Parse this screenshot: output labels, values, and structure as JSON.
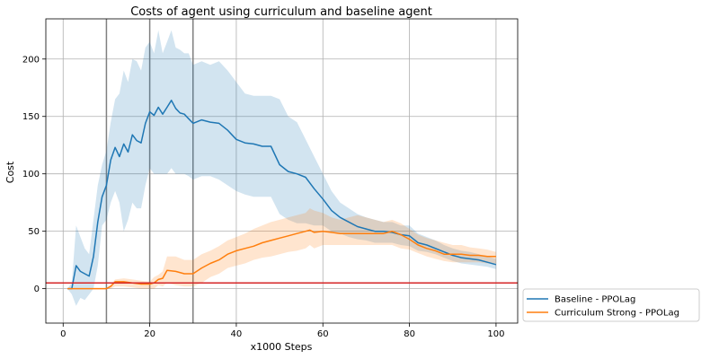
{
  "chart_data": {
    "type": "line",
    "title": "Costs of agent using curriculum and baseline agent",
    "xlabel": "x1000 Steps",
    "ylabel": "Cost",
    "xlim": [
      -4,
      105
    ],
    "ylim": [
      -30,
      235
    ],
    "xticks": [
      0,
      20,
      40,
      60,
      80,
      100
    ],
    "yticks": [
      0,
      50,
      100,
      150,
      200
    ],
    "grid": true,
    "legend_position": "outside-bottom-right",
    "threshold": {
      "y": 5,
      "color": "#d62728"
    },
    "vertical_markers": [
      10,
      20,
      30
    ],
    "series": [
      {
        "name": "Baseline - PPOLag",
        "color": "#1f77b4",
        "band_color": "#1f77b4",
        "x": [
          1,
          2,
          3,
          4,
          5,
          6,
          7,
          8,
          9,
          10,
          11,
          12,
          13,
          14,
          15,
          16,
          17,
          18,
          19,
          20,
          21,
          22,
          23,
          24,
          25,
          26,
          27,
          28,
          29,
          30,
          32,
          34,
          36,
          38,
          40,
          42,
          44,
          46,
          48,
          50,
          52,
          54,
          56,
          58,
          60,
          62,
          64,
          66,
          68,
          70,
          72,
          74,
          76,
          78,
          80,
          82,
          84,
          86,
          88,
          90,
          92,
          94,
          96,
          98,
          100
        ],
        "y": [
          0,
          0,
          20,
          15,
          13,
          11,
          28,
          58,
          80,
          90,
          112,
          123,
          115,
          126,
          119,
          134,
          129,
          127,
          144,
          154,
          151,
          158,
          152,
          158,
          164,
          157,
          153,
          152,
          148,
          144,
          147,
          145,
          144,
          138,
          130,
          127,
          126,
          124,
          124,
          108,
          102,
          100,
          97,
          87,
          78,
          68,
          62,
          58,
          54,
          52,
          50,
          50,
          49,
          47,
          46,
          40,
          38,
          35,
          32,
          29,
          27,
          26,
          25,
          23,
          21
        ],
        "upper": [
          0,
          5,
          55,
          45,
          35,
          30,
          60,
          90,
          108,
          120,
          145,
          165,
          170,
          190,
          180,
          200,
          198,
          190,
          210,
          215,
          205,
          225,
          205,
          215,
          225,
          210,
          208,
          205,
          205,
          195,
          198,
          195,
          198,
          190,
          180,
          170,
          168,
          168,
          168,
          165,
          150,
          145,
          130,
          115,
          100,
          85,
          75,
          70,
          65,
          62,
          60,
          58,
          58,
          55,
          55,
          48,
          45,
          42,
          38,
          35,
          33,
          32,
          30,
          28,
          26
        ],
        "lower": [
          0,
          -5,
          -15,
          -8,
          -10,
          -5,
          0,
          20,
          55,
          60,
          75,
          85,
          75,
          50,
          60,
          75,
          70,
          70,
          90,
          105,
          100,
          100,
          100,
          100,
          105,
          100,
          100,
          100,
          98,
          95,
          98,
          98,
          95,
          90,
          85,
          82,
          80,
          80,
          80,
          65,
          60,
          57,
          57,
          55,
          55,
          50,
          48,
          45,
          43,
          42,
          40,
          40,
          40,
          38,
          37,
          33,
          32,
          30,
          27,
          24,
          22,
          21,
          20,
          19,
          17
        ]
      },
      {
        "name": "Curriculum Strong - PPOLag",
        "color": "#ff7f0e",
        "band_color": "#ff7f0e",
        "x": [
          1,
          4,
          8,
          10,
          11,
          12,
          14,
          16,
          18,
          20,
          21,
          22,
          23,
          24,
          26,
          28,
          30,
          32,
          34,
          36,
          38,
          40,
          42,
          44,
          46,
          48,
          50,
          52,
          54,
          56,
          57,
          58,
          60,
          62,
          64,
          66,
          68,
          70,
          72,
          74,
          76,
          78,
          80,
          82,
          84,
          86,
          88,
          90,
          92,
          94,
          96,
          98,
          100
        ],
        "y": [
          0,
          0,
          0,
          0,
          2,
          6,
          6,
          5,
          4,
          4,
          5,
          8,
          9,
          16,
          15,
          13,
          13,
          18,
          22,
          25,
          30,
          33,
          35,
          37,
          40,
          42,
          44,
          46,
          48,
          50,
          51,
          49,
          50,
          49,
          48,
          48,
          48,
          48,
          48,
          48,
          50,
          47,
          43,
          38,
          35,
          33,
          30,
          30,
          30,
          29,
          29,
          28,
          28
        ],
        "upper": [
          0,
          0,
          0,
          0,
          4,
          8,
          9,
          8,
          7,
          6,
          10,
          12,
          15,
          28,
          28,
          25,
          25,
          30,
          33,
          37,
          42,
          45,
          48,
          52,
          55,
          58,
          60,
          62,
          64,
          66,
          70,
          68,
          66,
          62,
          60,
          62,
          64,
          62,
          60,
          58,
          60,
          57,
          52,
          47,
          44,
          42,
          40,
          38,
          38,
          36,
          35,
          34,
          32
        ],
        "lower": [
          0,
          0,
          0,
          0,
          0,
          2,
          2,
          1,
          0,
          0,
          0,
          3,
          2,
          5,
          3,
          2,
          2,
          5,
          10,
          13,
          18,
          20,
          22,
          25,
          27,
          28,
          30,
          32,
          33,
          35,
          38,
          35,
          38,
          38,
          38,
          38,
          38,
          38,
          38,
          38,
          38,
          35,
          34,
          31,
          28,
          26,
          24,
          23,
          23,
          23,
          23,
          22,
          22
        ]
      }
    ]
  }
}
